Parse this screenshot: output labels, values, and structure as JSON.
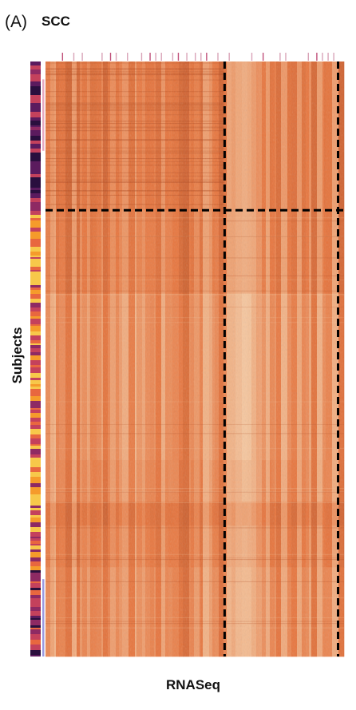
{
  "figure": {
    "panel_label": "(A)"
  },
  "chart_data": {
    "type": "heatmap",
    "title": "SCC",
    "xlabel": "RNASeq",
    "ylabel": "Subjects",
    "colors": {
      "base": "#e8763e",
      "light": "#f6c8a0",
      "dark": "#b24a1f",
      "divider": "#000000",
      "mark_top": "#d9a4b8",
      "mark_strong": "#c0507a",
      "mark_right_upper": "#e6a9c0",
      "mark_right_lower": "#9a9ae0"
    },
    "column_clusters": [
      {
        "from": 0.0,
        "to": 0.6
      },
      {
        "from": 0.6,
        "to": 0.98
      },
      {
        "from": 0.98,
        "to": 1.0
      }
    ],
    "row_clusters": [
      {
        "from": 0.0,
        "to": 0.25
      },
      {
        "from": 0.25,
        "to": 1.0
      }
    ],
    "row_annotation_palette": [
      "#2a0f3e",
      "#5b1b5e",
      "#8e2a63",
      "#c4415c",
      "#e8673f",
      "#f59b2b",
      "#f7c84a"
    ],
    "right_markers": [
      {
        "from": 0.03,
        "to": 0.15,
        "color": "mark_right_upper"
      },
      {
        "from": 0.87,
        "to": 1.0,
        "color": "mark_right_lower"
      }
    ],
    "grid": false,
    "legend": "none"
  }
}
